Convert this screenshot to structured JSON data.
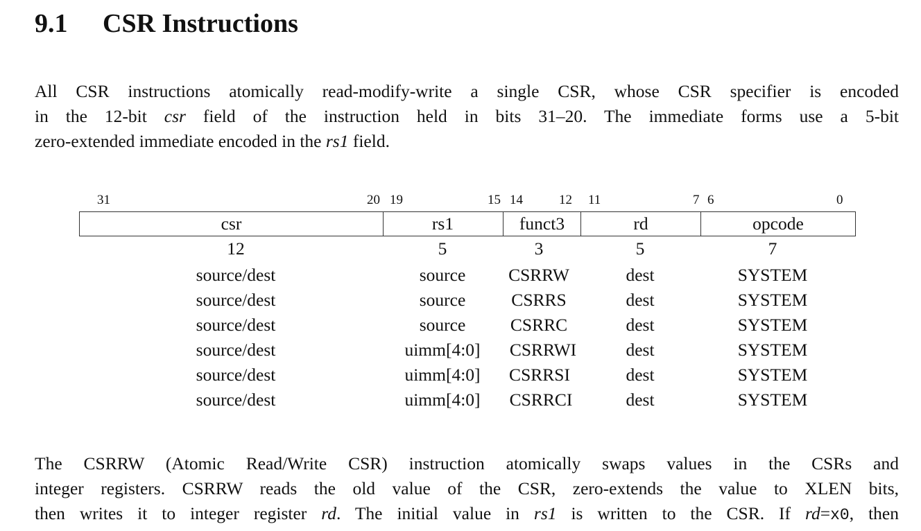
{
  "section": {
    "number": "9.1",
    "title": "CSR Instructions"
  },
  "intro": {
    "line1": "All CSR instructions atomically read-modify-write a single CSR, whose CSR specifier is encoded",
    "line2_a": "in the 12-bit ",
    "line2_em": "csr",
    "line2_b": " field of the instruction held in bits 31–20.  The immediate forms use a 5-bit",
    "line3_a": "zero-extended immediate encoded in the ",
    "line3_em": "rs1",
    "line3_b": " field."
  },
  "format": {
    "bit_labels": {
      "csr_hi": "31",
      "csr_lo": "20",
      "rs1_hi": "19",
      "rs1_lo": "15",
      "funct3_hi": "14",
      "funct3_lo": "12",
      "rd_hi": "11",
      "rd_lo": "7",
      "opcode_hi": "6",
      "opcode_lo": "0"
    },
    "fields": [
      "csr",
      "rs1",
      "funct3",
      "rd",
      "opcode"
    ],
    "widths": [
      "12",
      "5",
      "3",
      "5",
      "7"
    ],
    "rows": [
      [
        "source/dest",
        "source",
        "CSRRW",
        "dest",
        "SYSTEM"
      ],
      [
        "source/dest",
        "source",
        "CSRRS",
        "dest",
        "SYSTEM"
      ],
      [
        "source/dest",
        "source",
        "CSRRC",
        "dest",
        "SYSTEM"
      ],
      [
        "source/dest",
        "uimm[4:0]",
        "CSRRWI",
        "dest",
        "SYSTEM"
      ],
      [
        "source/dest",
        "uimm[4:0]",
        "CSRRSI",
        "dest",
        "SYSTEM"
      ],
      [
        "source/dest",
        "uimm[4:0]",
        "CSRRCI",
        "dest",
        "SYSTEM"
      ]
    ]
  },
  "body": {
    "line1": "The CSRRW (Atomic Read/Write CSR) instruction atomically swaps values in the CSRs and",
    "line2": "integer registers.  CSRRW reads the old value of the CSR, zero-extends the value to XLEN bits,",
    "line3_a": "then writes it to integer register ",
    "line3_em1": "rd",
    "line3_b": ".  The initial value in ",
    "line3_em2": "rs1",
    "line3_c": " is written to the CSR.  If ",
    "line3_em3": "rd",
    "line3_d": "=",
    "line3_code": "x0",
    "line3_e": ", then"
  }
}
